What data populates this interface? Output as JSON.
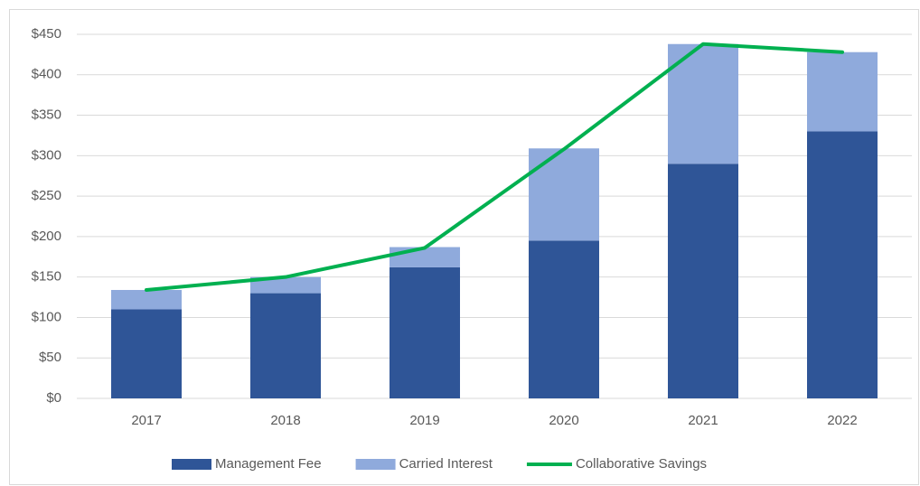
{
  "chart_data": {
    "type": "bar",
    "stacked": true,
    "categories": [
      "2017",
      "2018",
      "2019",
      "2020",
      "2021",
      "2022"
    ],
    "series": [
      {
        "name": "Management Fee",
        "type": "bar",
        "color": "#2f5597",
        "values": [
          110,
          130,
          162,
          195,
          290,
          330
        ]
      },
      {
        "name": "Carried Interest",
        "type": "bar",
        "color": "#8faadc",
        "values": [
          24,
          20,
          25,
          114,
          148,
          98
        ]
      },
      {
        "name": "Collaborative Savings",
        "type": "line",
        "color": "#00b050",
        "values": [
          134,
          150,
          186,
          308,
          438,
          428
        ]
      }
    ],
    "ylim": [
      0,
      450
    ],
    "yticks": [
      {
        "value": 0,
        "label": "$0"
      },
      {
        "value": 50,
        "label": "$50"
      },
      {
        "value": 100,
        "label": "$100"
      },
      {
        "value": 150,
        "label": "$150"
      },
      {
        "value": 200,
        "label": "$200"
      },
      {
        "value": 250,
        "label": "$250"
      },
      {
        "value": 300,
        "label": "$300"
      },
      {
        "value": 350,
        "label": "$350"
      },
      {
        "value": 400,
        "label": "$400"
      },
      {
        "value": 450,
        "label": "$450"
      }
    ],
    "grid": true,
    "legend": "bottom"
  }
}
